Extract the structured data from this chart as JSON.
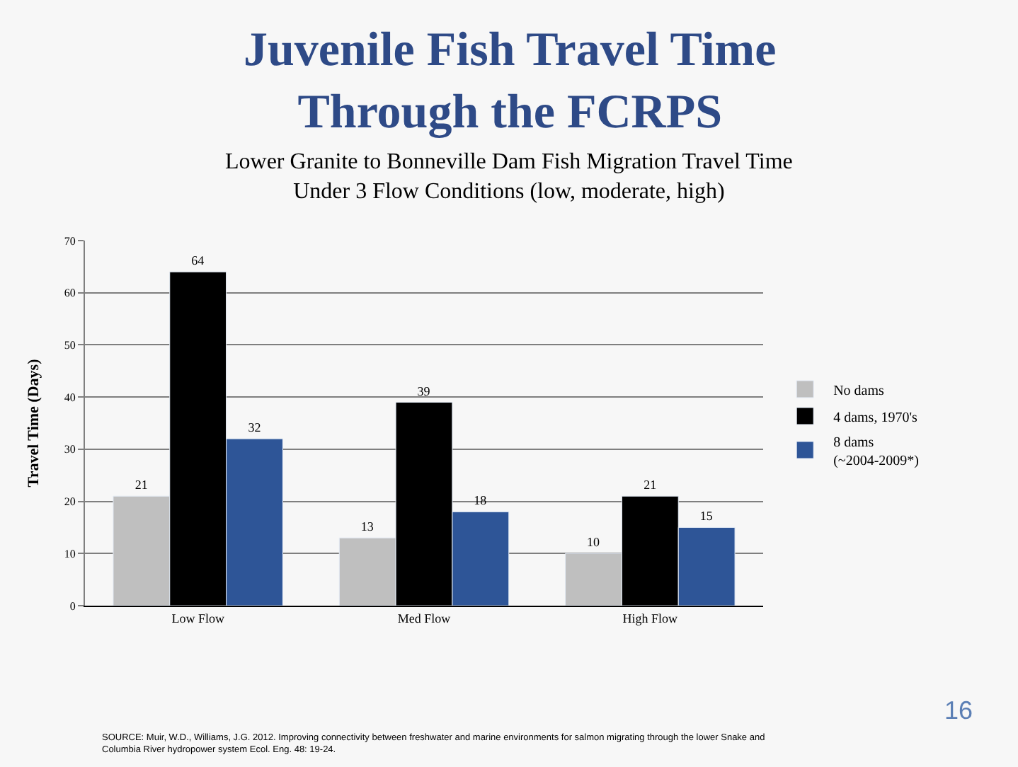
{
  "chart_data": {
    "type": "bar",
    "title": "Juvenile Fish Travel Time\nThrough the FCRPS",
    "subtitle": "Lower Granite to Bonneville Dam Fish Migration Travel Time\nUnder 3 Flow Conditions (low, moderate, high)",
    "ylabel": "Travel Time (Days)",
    "categories": [
      "Low Flow",
      "Med Flow",
      "High Flow"
    ],
    "series": [
      {
        "name": "No dams",
        "color": "#bfbfbf",
        "values": [
          21,
          13,
          10
        ]
      },
      {
        "name": "4 dams, 1970's",
        "color": "#000000",
        "values": [
          64,
          39,
          21
        ]
      },
      {
        "name": "8 dams\n(~2004-2009*)",
        "color": "#2e5597",
        "values": [
          32,
          18,
          15
        ]
      }
    ],
    "ylim": [
      0,
      70
    ],
    "yticks": [
      0,
      10,
      20,
      30,
      40,
      50,
      60,
      70
    ],
    "grid": "y",
    "legend": "right",
    "data_labels": true,
    "annotations": [
      "16",
      "SOURCE: Muir, W.D., Williams, J.G. 2012. Improving connectivity between freshwater and marine environments for salmon migrating through the lower Snake and\nColumbia River hydropower system Ecol. Eng. 48: 19-24."
    ]
  }
}
